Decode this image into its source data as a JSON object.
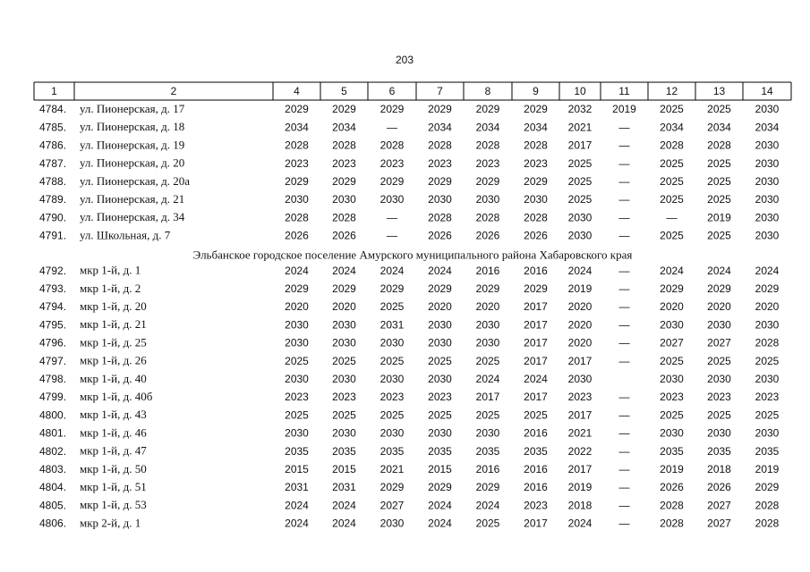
{
  "page_number": "203",
  "table": {
    "header": [
      "1",
      "2",
      "4",
      "5",
      "6",
      "7",
      "8",
      "9",
      "10",
      "11",
      "12",
      "13",
      "14"
    ],
    "groups": [
      {
        "rows": [
          [
            "4784.",
            "ул. Пионерская, д. 17",
            2029,
            2029,
            2029,
            2029,
            2029,
            2029,
            2032,
            2019,
            2025,
            2025,
            2030
          ],
          [
            "4785.",
            "ул. Пионерская, д. 18",
            2034,
            2034,
            "—",
            2034,
            2034,
            2034,
            2021,
            "—",
            2034,
            2034,
            2034
          ],
          [
            "4786.",
            "ул. Пионерская, д. 19",
            2028,
            2028,
            2028,
            2028,
            2028,
            2028,
            2017,
            "—",
            2028,
            2028,
            2030
          ],
          [
            "4787.",
            "ул. Пионерская, д. 20",
            2023,
            2023,
            2023,
            2023,
            2023,
            2023,
            2025,
            "—",
            2025,
            2025,
            2030
          ],
          [
            "4788.",
            "ул. Пионерская, д. 20а",
            2029,
            2029,
            2029,
            2029,
            2029,
            2029,
            2025,
            "—",
            2025,
            2025,
            2030
          ],
          [
            "4789.",
            "ул. Пионерская, д. 21",
            2030,
            2030,
            2030,
            2030,
            2030,
            2030,
            2025,
            "—",
            2025,
            2025,
            2030
          ],
          [
            "4790.",
            "ул. Пионерская, д. 34",
            2028,
            2028,
            "—",
            2028,
            2028,
            2028,
            2030,
            "—",
            "—",
            2019,
            2030
          ],
          [
            "4791.",
            "ул. Школьная, д. 7",
            2026,
            2026,
            "—",
            2026,
            2026,
            2026,
            2030,
            "—",
            2025,
            2025,
            2030
          ]
        ]
      },
      {
        "title": "Эльбанское городское поселение Амурского муниципального района Хабаровского края",
        "rows": [
          [
            "4792.",
            "мкр 1-й, д. 1",
            2024,
            2024,
            2024,
            2024,
            2016,
            2016,
            2024,
            "—",
            2024,
            2024,
            2024
          ],
          [
            "4793.",
            "мкр 1-й, д. 2",
            2029,
            2029,
            2029,
            2029,
            2029,
            2029,
            2019,
            "—",
            2029,
            2029,
            2029
          ],
          [
            "4794.",
            "мкр 1-й, д. 20",
            2020,
            2020,
            2025,
            2020,
            2020,
            2017,
            2020,
            "—",
            2020,
            2020,
            2020
          ],
          [
            "4795.",
            "мкр 1-й, д. 21",
            2030,
            2030,
            2031,
            2030,
            2030,
            2017,
            2020,
            "—",
            2030,
            2030,
            2030
          ],
          [
            "4796.",
            "мкр 1-й, д. 25",
            2030,
            2030,
            2030,
            2030,
            2030,
            2017,
            2020,
            "—",
            2027,
            2027,
            2028
          ],
          [
            "4797.",
            "мкр 1-й, д. 26",
            2025,
            2025,
            2025,
            2025,
            2025,
            2017,
            2017,
            "—",
            2025,
            2025,
            2025
          ],
          [
            "4798.",
            "мкр 1-й, д. 40",
            2030,
            2030,
            2030,
            2030,
            2024,
            2024,
            2030,
            null,
            2030,
            2030,
            2030
          ],
          [
            "4799.",
            "мкр 1-й, д. 40б",
            2023,
            2023,
            2023,
            2023,
            2017,
            2017,
            2023,
            "—",
            2023,
            2023,
            2023
          ],
          [
            "4800.",
            "мкр 1-й, д. 43",
            2025,
            2025,
            2025,
            2025,
            2025,
            2025,
            2017,
            "—",
            2025,
            2025,
            2025
          ],
          [
            "4801.",
            "мкр 1-й, д. 46",
            2030,
            2030,
            2030,
            2030,
            2030,
            2016,
            2021,
            "—",
            2030,
            2030,
            2030
          ],
          [
            "4802.",
            "мкр 1-й, д. 47",
            2035,
            2035,
            2035,
            2035,
            2035,
            2035,
            2022,
            "—",
            2035,
            2035,
            2035
          ],
          [
            "4803.",
            "мкр 1-й, д. 50",
            2015,
            2015,
            2021,
            2015,
            2016,
            2016,
            2017,
            "—",
            2019,
            2018,
            2019
          ],
          [
            "4804.",
            "мкр 1-й, д. 51",
            2031,
            2031,
            2029,
            2029,
            2029,
            2016,
            2019,
            "—",
            2026,
            2026,
            2029
          ],
          [
            "4805.",
            "мкр 1-й, д. 53",
            2024,
            2024,
            2027,
            2024,
            2024,
            2023,
            2018,
            "—",
            2028,
            2027,
            2028
          ],
          [
            "4806.",
            "мкр 2-й, д. 1",
            2024,
            2024,
            2030,
            2024,
            2025,
            2017,
            2024,
            "—",
            2028,
            2027,
            2028
          ]
        ]
      }
    ]
  }
}
